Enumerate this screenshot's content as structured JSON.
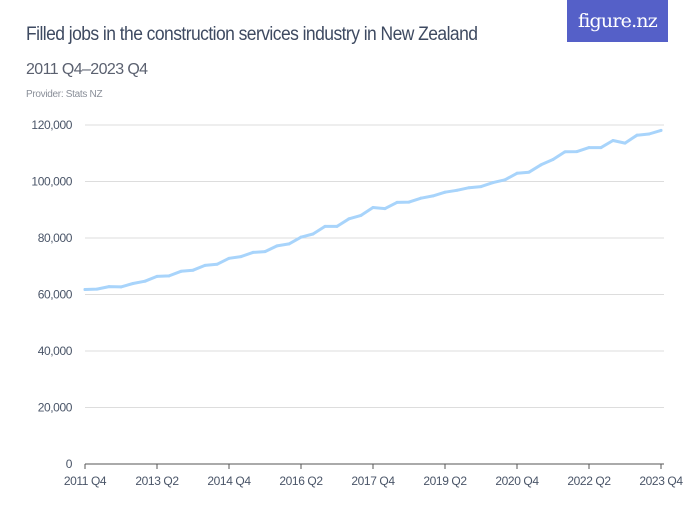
{
  "header": {
    "title": "Filled jobs in the construction services industry in New Zealand",
    "subtitle": "2011 Q4–2023 Q4",
    "provider": "Provider: Stats NZ",
    "logo_text": "figure.nz"
  },
  "colors": {
    "line": "#a8d4fb",
    "grid": "#dddddd",
    "logo_bg": "#5560c8",
    "title": "#3e4a61"
  },
  "chart_data": {
    "type": "line",
    "title": "Filled jobs in the construction services industry in New Zealand",
    "subtitle": "2011 Q4–2023 Q4",
    "xlabel": "",
    "ylabel": "",
    "ylim": [
      0,
      120000
    ],
    "y_ticks": [
      "0",
      "20,000",
      "40,000",
      "60,000",
      "80,000",
      "100,000",
      "120,000"
    ],
    "y_tick_values": [
      0,
      20000,
      40000,
      60000,
      80000,
      100000,
      120000
    ],
    "x_ticks": [
      "2011 Q4",
      "2013 Q2",
      "2014 Q4",
      "2016 Q2",
      "2017 Q4",
      "2019 Q2",
      "2020 Q4",
      "2022 Q2",
      "2023 Q4"
    ],
    "grid": true,
    "legend": "none",
    "categories": [
      "2011 Q4",
      "2012 Q1",
      "2012 Q2",
      "2012 Q3",
      "2012 Q4",
      "2013 Q1",
      "2013 Q2",
      "2013 Q3",
      "2013 Q4",
      "2014 Q1",
      "2014 Q2",
      "2014 Q3",
      "2014 Q4",
      "2015 Q1",
      "2015 Q2",
      "2015 Q3",
      "2015 Q4",
      "2016 Q1",
      "2016 Q2",
      "2016 Q3",
      "2016 Q4",
      "2017 Q1",
      "2017 Q2",
      "2017 Q3",
      "2017 Q4",
      "2018 Q1",
      "2018 Q2",
      "2018 Q3",
      "2018 Q4",
      "2019 Q1",
      "2019 Q2",
      "2019 Q3",
      "2019 Q4",
      "2020 Q1",
      "2020 Q2",
      "2020 Q3",
      "2020 Q4",
      "2021 Q1",
      "2021 Q2",
      "2021 Q3",
      "2021 Q4",
      "2022 Q1",
      "2022 Q2",
      "2022 Q3",
      "2022 Q4",
      "2023 Q1",
      "2023 Q2",
      "2023 Q3",
      "2023 Q4"
    ],
    "values": [
      61760,
      61900,
      62800,
      62700,
      63900,
      64700,
      66400,
      66600,
      68200,
      68600,
      70300,
      70700,
      72800,
      73400,
      74900,
      75200,
      77200,
      77900,
      80300,
      81400,
      84100,
      84100,
      86800,
      88000,
      90800,
      90400,
      92600,
      92700,
      94100,
      94900,
      96200,
      96900,
      97800,
      98200,
      99600,
      100600,
      102900,
      103300,
      105900,
      107800,
      110500,
      110600,
      112000,
      112000,
      114500,
      113600,
      116400,
      116800,
      118100
    ]
  }
}
